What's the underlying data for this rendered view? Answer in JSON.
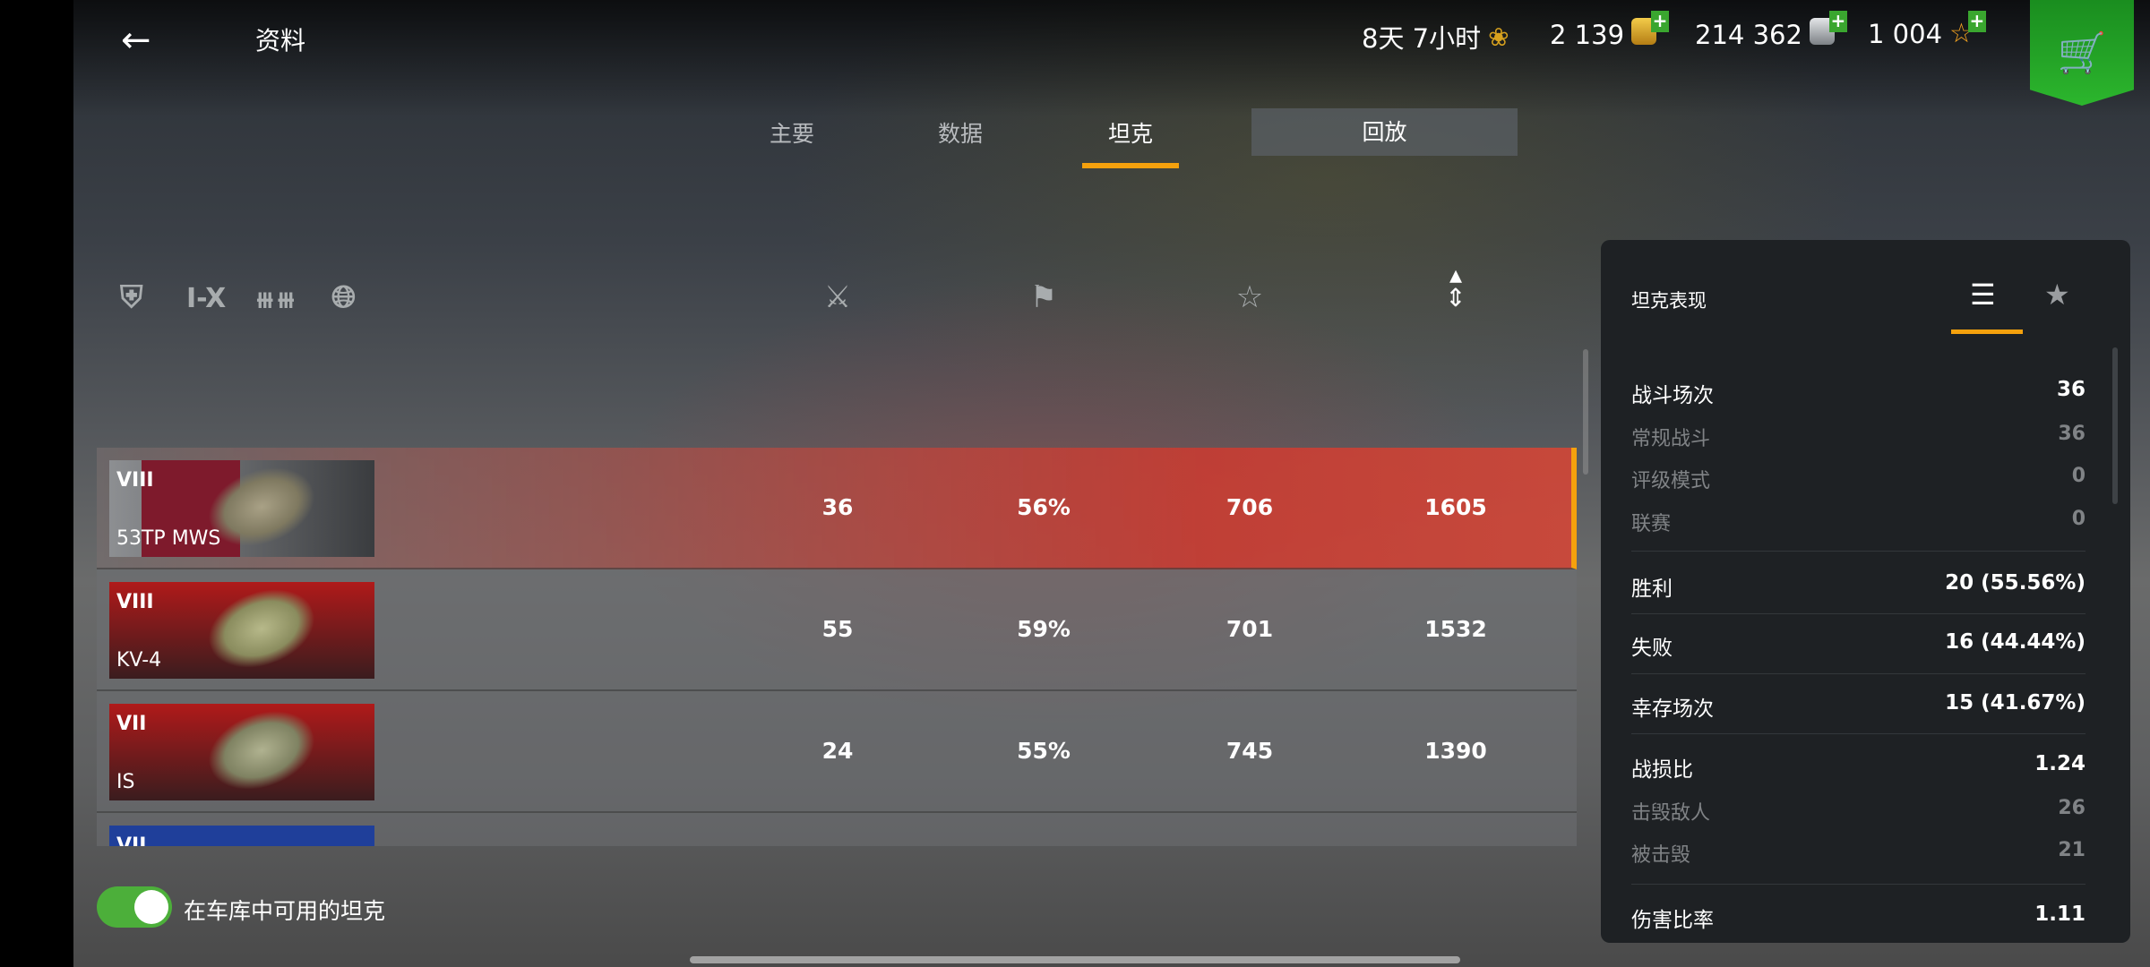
{
  "header": {
    "title": "资料",
    "back_icon": "arrow-left-icon",
    "premium": {
      "value": "8天 7小时",
      "icon": "premium-laurel-icon"
    },
    "gold": {
      "value": "2 139",
      "icon": "gold-coins-icon"
    },
    "credits": {
      "value": "214 362",
      "icon": "silver-coins-icon"
    },
    "free_xp": {
      "value": "1 004",
      "icon": "star-icon"
    },
    "shop_icon": "cart-icon"
  },
  "tabs": [
    {
      "label": "主要"
    },
    {
      "label": "数据"
    },
    {
      "label": "坦克",
      "active": true
    },
    {
      "label": "回放"
    }
  ],
  "filters": [
    "shield-star-icon",
    "I-X",
    "nation-stripes-icon",
    "globe-icon"
  ],
  "column_icons": [
    "battles-crossed-swords-icon",
    "winrate-flag-icon",
    "xp-star-icon",
    "damage-sort-icon"
  ],
  "tanks": [
    {
      "tier": "VIII",
      "name": "53TP MWS",
      "battles": "36",
      "winrate": "56%",
      "xp": "706",
      "damage": "1605",
      "flag_color": "#7e1a2c",
      "selected": true
    },
    {
      "tier": "VIII",
      "name": "KV-4",
      "battles": "55",
      "winrate": "59%",
      "xp": "701",
      "damage": "1532",
      "flag_color": "#b01a1a"
    },
    {
      "tier": "VII",
      "name": "IS",
      "battles": "24",
      "winrate": "55%",
      "xp": "745",
      "damage": "1390",
      "flag_color": "#b01a1a"
    },
    {
      "tier": "VII",
      "name": "",
      "flag_color": "#1f3f9a"
    }
  ],
  "toggle": {
    "label": "在车库中可用的坦克",
    "on": true
  },
  "panel": {
    "title": "坦克表现",
    "tab_icons": [
      "list-icon",
      "achievement-star-icon"
    ],
    "stats": [
      {
        "label": "战斗场次",
        "value": "36"
      },
      {
        "label": "常规战斗",
        "value": "36",
        "sub": true
      },
      {
        "label": "评级模式",
        "value": "0",
        "sub": true
      },
      {
        "label": "联赛",
        "value": "0",
        "sub": true
      },
      {
        "label": "胜利",
        "value": "20 (55.56%)"
      },
      {
        "label": "失败",
        "value": "16 (44.44%)"
      },
      {
        "label": "幸存场次",
        "value": "15 (41.67%)"
      },
      {
        "label": "战损比",
        "value": "1.24"
      },
      {
        "label": "击毁敌人",
        "value": "26",
        "sub": true
      },
      {
        "label": "被击毁",
        "value": "21",
        "sub": true
      },
      {
        "label": "伤害比率",
        "value": "1.11"
      }
    ]
  },
  "colors": {
    "accent": "#f5a10d",
    "toggle_on": "#4caf3a",
    "shop": "#2cb62d"
  }
}
